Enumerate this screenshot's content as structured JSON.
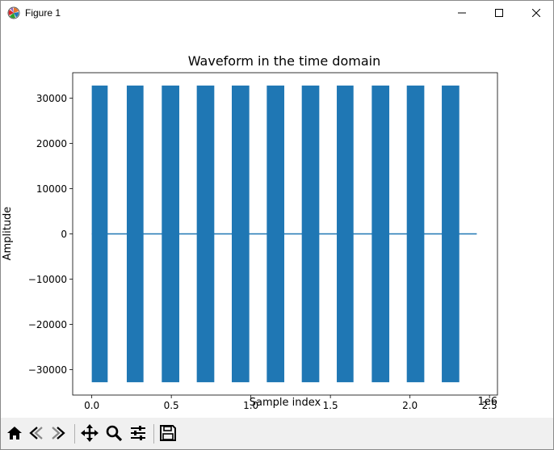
{
  "window": {
    "title": "Figure 1",
    "icon": "matplotlib-logo-icon",
    "controls": [
      "minimize-icon",
      "maximize-icon",
      "close-icon"
    ]
  },
  "toolbar": {
    "buttons": [
      "home-icon",
      "back-arrow-icon",
      "forward-arrow-icon",
      "pan-icon",
      "zoom-icon",
      "configure-subplots-icon",
      "save-icon"
    ]
  },
  "chart_data": {
    "type": "line",
    "title": "Waveform in the time domain",
    "xlabel": "Sample index",
    "ylabel": "Amplitude",
    "x_offset_label": "1e6",
    "xlim": [
      -0.12,
      2.55
    ],
    "ylim": [
      -35600,
      35600
    ],
    "xticks": [
      {
        "value": 0.0,
        "label": "0.0"
      },
      {
        "value": 0.5,
        "label": "0.5"
      },
      {
        "value": 1.0,
        "label": "1.0"
      },
      {
        "value": 1.5,
        "label": "1.5"
      },
      {
        "value": 2.0,
        "label": "2.0"
      },
      {
        "value": 2.5,
        "label": "2.5"
      }
    ],
    "yticks": [
      {
        "value": 30000,
        "label": "30000"
      },
      {
        "value": 20000,
        "label": "20000"
      },
      {
        "value": 10000,
        "label": "10000"
      },
      {
        "value": 0,
        "label": "0"
      },
      {
        "value": -10000,
        "label": "−10000"
      },
      {
        "value": -20000,
        "label": "−20000"
      },
      {
        "value": -30000,
        "label": "−30000"
      }
    ],
    "grid": false,
    "color": "#1f77b4",
    "signal_range_x": [
      0.0,
      2.42
    ],
    "baseline_y": 0,
    "amplitude": [
      -32768,
      32767
    ],
    "bursts": [
      {
        "start": 0.0,
        "end": 0.1
      },
      {
        "start": 0.22,
        "end": 0.325
      },
      {
        "start": 0.44,
        "end": 0.55
      },
      {
        "start": 0.66,
        "end": 0.77
      },
      {
        "start": 0.88,
        "end": 0.99
      },
      {
        "start": 1.1,
        "end": 1.21
      },
      {
        "start": 1.32,
        "end": 1.43
      },
      {
        "start": 1.54,
        "end": 1.645
      },
      {
        "start": 1.76,
        "end": 1.87
      },
      {
        "start": 1.98,
        "end": 2.09
      },
      {
        "start": 2.2,
        "end": 2.31
      }
    ]
  }
}
